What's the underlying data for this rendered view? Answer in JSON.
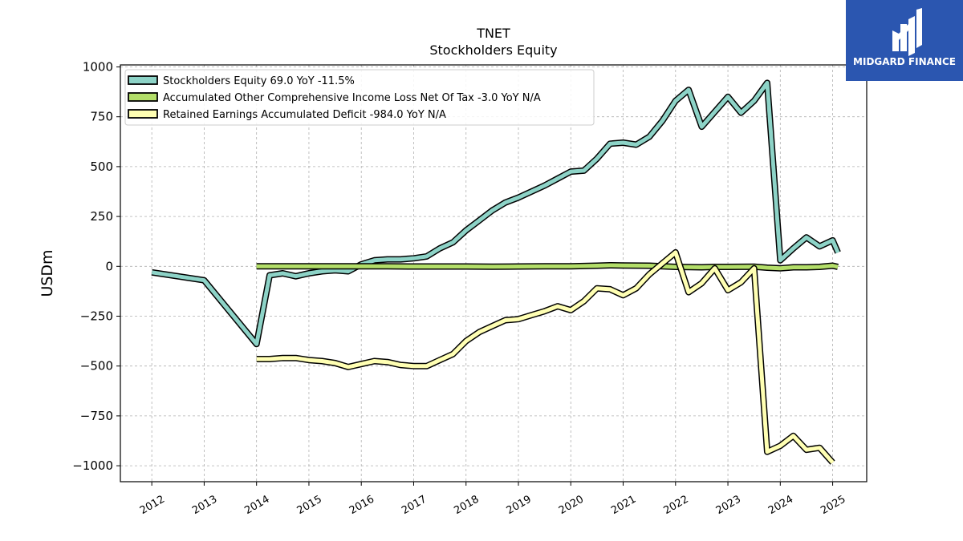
{
  "brand": {
    "name": "MIDGARD FINANCE",
    "color": "#2b56b0",
    "logo_icon": "midgard-logo-icon"
  },
  "chart_data": {
    "type": "line",
    "title": "TNET",
    "subtitle": "Stockholders  Equity",
    "ylabel": "USDm",
    "ylim": [
      -1080,
      1010
    ],
    "xlim": [
      2011.4,
      2025.65
    ],
    "yticks": [
      1000,
      750,
      500,
      250,
      0,
      -250,
      -500,
      -750,
      -1000
    ],
    "ytick_labels": [
      "1000",
      "750",
      "500",
      "250",
      "0",
      "−250",
      "−500",
      "−750",
      "−1000"
    ],
    "xticks": [
      2012,
      2013,
      2014,
      2015,
      2016,
      2017,
      2018,
      2019,
      2020,
      2021,
      2022,
      2023,
      2024,
      2025
    ],
    "xtick_labels": [
      "2012",
      "2013",
      "2014",
      "2015",
      "2016",
      "2017",
      "2018",
      "2019",
      "2020",
      "2021",
      "2022",
      "2023",
      "2024",
      "2025"
    ],
    "grid": true,
    "legend_position": "top-left",
    "series": [
      {
        "name": "Stockholders Equity  69.0 YoY -11.5%",
        "color": "#8dd3c7",
        "points": [
          [
            2012.0,
            -30
          ],
          [
            2013.0,
            -70
          ],
          [
            2014.0,
            -390
          ],
          [
            2014.25,
            -45
          ],
          [
            2014.5,
            -35
          ],
          [
            2014.75,
            -50
          ],
          [
            2015.0,
            -35
          ],
          [
            2015.25,
            -25
          ],
          [
            2015.5,
            -20
          ],
          [
            2015.75,
            -25
          ],
          [
            2016.0,
            10
          ],
          [
            2016.25,
            30
          ],
          [
            2016.5,
            35
          ],
          [
            2016.75,
            35
          ],
          [
            2017.0,
            40
          ],
          [
            2017.25,
            50
          ],
          [
            2017.5,
            90
          ],
          [
            2017.75,
            120
          ],
          [
            2018.0,
            180
          ],
          [
            2018.25,
            230
          ],
          [
            2018.5,
            280
          ],
          [
            2018.75,
            320
          ],
          [
            2019.0,
            345
          ],
          [
            2019.25,
            375
          ],
          [
            2019.5,
            405
          ],
          [
            2019.75,
            440
          ],
          [
            2020.0,
            475
          ],
          [
            2020.25,
            480
          ],
          [
            2020.5,
            540
          ],
          [
            2020.75,
            615
          ],
          [
            2021.0,
            620
          ],
          [
            2021.25,
            610
          ],
          [
            2021.5,
            650
          ],
          [
            2021.75,
            730
          ],
          [
            2022.0,
            830
          ],
          [
            2022.25,
            885
          ],
          [
            2022.5,
            700
          ],
          [
            2022.75,
            775
          ],
          [
            2023.0,
            850
          ],
          [
            2023.25,
            770
          ],
          [
            2023.5,
            830
          ],
          [
            2023.75,
            920
          ],
          [
            2024.0,
            30
          ],
          [
            2024.25,
            90
          ],
          [
            2024.5,
            145
          ],
          [
            2024.75,
            100
          ],
          [
            2025.0,
            130
          ],
          [
            2025.1,
            69
          ]
        ]
      },
      {
        "name": "Accumulated Other Comprehensive Income Loss Net Of Tax  -3.0 YoY N/A",
        "color": "#b3de69",
        "points": [
          [
            2014.0,
            0
          ],
          [
            2014.5,
            0
          ],
          [
            2015.0,
            0
          ],
          [
            2015.5,
            0
          ],
          [
            2016.0,
            0
          ],
          [
            2016.5,
            0
          ],
          [
            2017.0,
            -1
          ],
          [
            2017.5,
            -1
          ],
          [
            2018.0,
            -1
          ],
          [
            2018.5,
            -2
          ],
          [
            2019.0,
            -1
          ],
          [
            2019.5,
            0
          ],
          [
            2020.0,
            0
          ],
          [
            2020.5,
            3
          ],
          [
            2020.75,
            5
          ],
          [
            2021.0,
            4
          ],
          [
            2021.5,
            3
          ],
          [
            2022.0,
            -3
          ],
          [
            2022.5,
            -5
          ],
          [
            2022.75,
            -3
          ],
          [
            2023.0,
            -3
          ],
          [
            2023.5,
            -2
          ],
          [
            2023.75,
            -7
          ],
          [
            2024.0,
            -10
          ],
          [
            2024.25,
            -5
          ],
          [
            2024.5,
            -5
          ],
          [
            2024.75,
            -3
          ],
          [
            2025.0,
            3
          ],
          [
            2025.1,
            -3
          ]
        ]
      },
      {
        "name": "Retained Earnings Accumulated Deficit  -984.0 YoY N/A",
        "color": "#ffffb3",
        "points": [
          [
            2014.0,
            -465
          ],
          [
            2014.25,
            -465
          ],
          [
            2014.5,
            -460
          ],
          [
            2014.75,
            -460
          ],
          [
            2015.0,
            -470
          ],
          [
            2015.25,
            -475
          ],
          [
            2015.5,
            -485
          ],
          [
            2015.75,
            -505
          ],
          [
            2016.0,
            -490
          ],
          [
            2016.25,
            -475
          ],
          [
            2016.5,
            -480
          ],
          [
            2016.75,
            -495
          ],
          [
            2017.0,
            -500
          ],
          [
            2017.25,
            -500
          ],
          [
            2017.5,
            -470
          ],
          [
            2017.75,
            -440
          ],
          [
            2018.0,
            -375
          ],
          [
            2018.25,
            -330
          ],
          [
            2018.5,
            -300
          ],
          [
            2018.75,
            -270
          ],
          [
            2019.0,
            -265
          ],
          [
            2019.25,
            -245
          ],
          [
            2019.5,
            -225
          ],
          [
            2019.75,
            -200
          ],
          [
            2020.0,
            -220
          ],
          [
            2020.25,
            -175
          ],
          [
            2020.5,
            -110
          ],
          [
            2020.75,
            -115
          ],
          [
            2021.0,
            -145
          ],
          [
            2021.25,
            -110
          ],
          [
            2021.5,
            -40
          ],
          [
            2021.75,
            15
          ],
          [
            2022.0,
            70
          ],
          [
            2022.25,
            -130
          ],
          [
            2022.5,
            -85
          ],
          [
            2022.75,
            -10
          ],
          [
            2023.0,
            -120
          ],
          [
            2023.25,
            -80
          ],
          [
            2023.5,
            -10
          ],
          [
            2023.75,
            -930
          ],
          [
            2024.0,
            -900
          ],
          [
            2024.25,
            -850
          ],
          [
            2024.5,
            -920
          ],
          [
            2024.75,
            -910
          ],
          [
            2025.0,
            -984
          ]
        ]
      }
    ]
  }
}
